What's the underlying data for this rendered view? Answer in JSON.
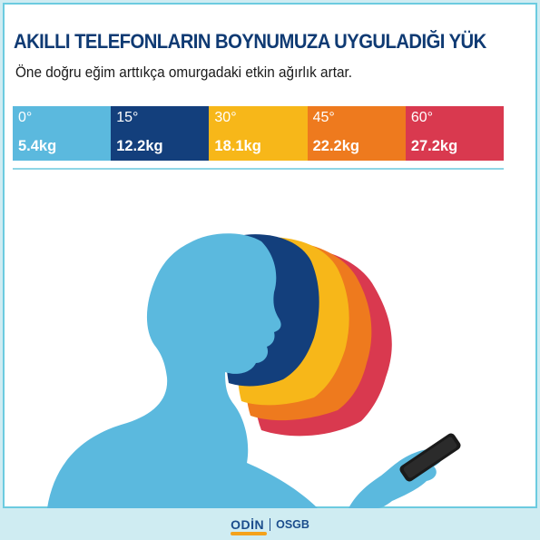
{
  "title": "AKILLI TELEFONLARIN BOYNUMUZA UYGULADIĞI YÜK",
  "subtitle": "Öne doğru eğim arttıkça omurgadaki etkin ağırlık artar.",
  "angles": [
    {
      "degree": "0°",
      "weight": "5.4kg",
      "color": "#5bb9de"
    },
    {
      "degree": "15°",
      "weight": "12.2kg",
      "color": "#133f7c"
    },
    {
      "degree": "30°",
      "weight": "18.1kg",
      "color": "#f7b719"
    },
    {
      "degree": "45°",
      "weight": "22.2kg",
      "color": "#ee7a1e"
    },
    {
      "degree": "60°",
      "weight": "27.2kg",
      "color": "#d9394f"
    }
  ],
  "footer": {
    "brand": "ODİN",
    "suffix": "OSGB"
  },
  "colors": {
    "skin": "#8fc6df",
    "phone": "#1a1a1a",
    "background": "#cfecf2",
    "frame": "#6ccbe0"
  }
}
